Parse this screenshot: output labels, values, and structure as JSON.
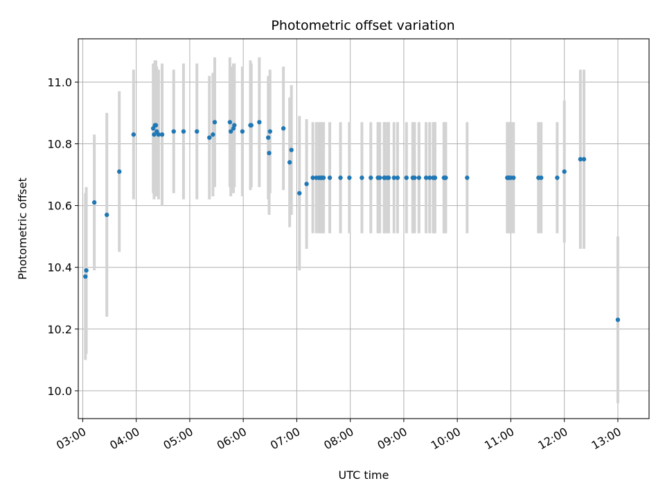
{
  "chart_data": {
    "type": "scatter",
    "title": "Photometric offset variation",
    "xlabel": "UTC time",
    "ylabel": "Photometric offset",
    "xlim": [
      "02:55",
      "13:35"
    ],
    "ylim": [
      9.91,
      11.14
    ],
    "x_ticks": [
      "03:00",
      "04:00",
      "05:00",
      "06:00",
      "07:00",
      "08:00",
      "09:00",
      "10:00",
      "11:00",
      "12:00",
      "13:00"
    ],
    "y_ticks": [
      "10.0",
      "10.2",
      "10.4",
      "10.6",
      "10.8",
      "11.0"
    ],
    "grid": true,
    "colors": {
      "point": "#1f77b4",
      "errorbar": "#d3d3d3",
      "grid": "#b0b0b0"
    },
    "series": [
      {
        "x": [
          "03:03",
          "03:04",
          "03:13",
          "03:27",
          "03:41",
          "03:57",
          "04:19",
          "04:20",
          "04:21",
          "04:22",
          "04:23",
          "04:25",
          "04:29",
          "04:42",
          "04:53",
          "05:08",
          "05:22",
          "05:26",
          "05:28",
          "05:45",
          "05:46",
          "05:49",
          "05:50",
          "05:59",
          "06:08",
          "06:09",
          "06:18",
          "06:28",
          "06:29",
          "06:30",
          "06:45",
          "06:52",
          "06:54",
          "07:03",
          "07:11",
          "07:18",
          "07:22",
          "07:25",
          "07:27",
          "07:28",
          "07:30",
          "07:37",
          "07:49",
          "07:59",
          "08:13",
          "08:23",
          "08:31",
          "08:33",
          "08:38",
          "08:39",
          "08:42",
          "08:43",
          "08:49",
          "08:53",
          "09:03",
          "09:10",
          "09:12",
          "09:17",
          "09:25",
          "09:29",
          "09:33",
          "09:34",
          "09:35",
          "09:45",
          "09:46",
          "09:47",
          "10:11",
          "10:56",
          "10:57",
          "10:58",
          "11:00",
          "11:03",
          "11:31",
          "11:34",
          "11:52",
          "12:00",
          "12:18",
          "12:22",
          "13:00"
        ],
        "y": [
          10.37,
          10.39,
          10.61,
          10.57,
          10.71,
          10.83,
          10.85,
          10.83,
          10.86,
          10.86,
          10.84,
          10.83,
          10.83,
          10.84,
          10.84,
          10.84,
          10.82,
          10.83,
          10.87,
          10.87,
          10.84,
          10.85,
          10.86,
          10.84,
          10.86,
          10.86,
          10.87,
          10.82,
          10.77,
          10.84,
          10.85,
          10.74,
          10.78,
          10.64,
          10.67,
          10.69,
          10.69,
          10.69,
          10.69,
          10.69,
          10.69,
          10.69,
          10.69,
          10.69,
          10.69,
          10.69,
          10.69,
          10.69,
          10.69,
          10.69,
          10.69,
          10.69,
          10.69,
          10.69,
          10.69,
          10.69,
          10.69,
          10.69,
          10.69,
          10.69,
          10.69,
          10.69,
          10.69,
          10.69,
          10.69,
          10.69,
          10.69,
          10.69,
          10.69,
          10.69,
          10.69,
          10.69,
          10.69,
          10.69,
          10.69,
          10.71,
          10.75,
          10.75,
          10.23
        ],
        "err": [
          0.27,
          0.27,
          0.22,
          0.33,
          0.26,
          0.21,
          0.21,
          0.21,
          0.21,
          0.21,
          0.21,
          0.21,
          0.23,
          0.2,
          0.22,
          0.22,
          0.2,
          0.2,
          0.21,
          0.21,
          0.21,
          0.21,
          0.2,
          0.21,
          0.21,
          0.2,
          0.21,
          0.2,
          0.2,
          0.2,
          0.2,
          0.21,
          0.21,
          0.25,
          0.21,
          0.18,
          0.18,
          0.18,
          0.18,
          0.18,
          0.18,
          0.18,
          0.18,
          0.18,
          0.18,
          0.18,
          0.18,
          0.18,
          0.18,
          0.18,
          0.18,
          0.18,
          0.18,
          0.18,
          0.18,
          0.18,
          0.18,
          0.18,
          0.18,
          0.18,
          0.18,
          0.18,
          0.18,
          0.18,
          0.18,
          0.18,
          0.18,
          0.18,
          0.18,
          0.18,
          0.18,
          0.18,
          0.18,
          0.18,
          0.18,
          0.23,
          0.29,
          0.29,
          0.27
        ]
      }
    ]
  }
}
